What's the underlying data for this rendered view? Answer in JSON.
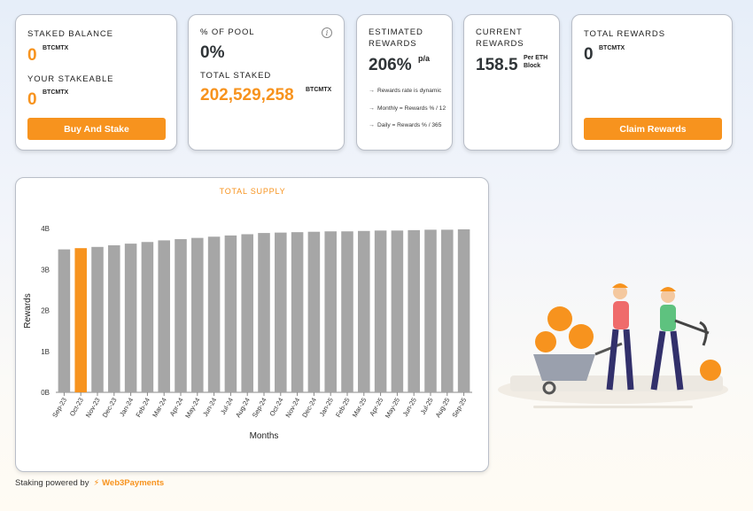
{
  "cards": {
    "staked_balance": {
      "label": "STAKED BALANCE",
      "value": "0",
      "unit": "BTCMTX",
      "stakeable_label": "YOUR STAKEABLE",
      "stakeable_value": "0",
      "stakeable_unit": "BTCMTX",
      "button": "Buy And Stake"
    },
    "pool": {
      "label": "% OF POOL",
      "value": "0%",
      "info_icon": "info-icon",
      "total_label": "TOTAL STAKED",
      "total_value": "202,529,258",
      "total_unit": "BTCMTX"
    },
    "estimated": {
      "label_line1": "ESTIMATED",
      "label_line2": "REWARDS",
      "value": "206%",
      "unit": "p/a",
      "notes": [
        "Rewards rate is dynamic",
        "Monthly = Rewards % / 12",
        "Daily = Rewards % / 365"
      ]
    },
    "current": {
      "label_line1": "CURRENT",
      "label_line2": "REWARDS",
      "value": "158.5",
      "unit_line1": "Per ETH",
      "unit_line2": "Block"
    },
    "total_rewards": {
      "label": "TOTAL REWARDS",
      "value": "0",
      "unit": "BTCMTX",
      "button": "Claim Rewards"
    }
  },
  "footer": {
    "text": "Staking powered by",
    "brand": "Web3Payments"
  },
  "colors": {
    "accent": "#f7931e",
    "bar": "#a6a6a6",
    "highlight": "#f7931e"
  },
  "chart_data": {
    "type": "bar",
    "title": "TOTAL SUPPLY",
    "xlabel": "Months",
    "ylabel": "Rewards",
    "ylim": [
      0,
      4
    ],
    "y_unit": "B",
    "yticks": [
      "0B",
      "1B",
      "2B",
      "3B",
      "4B"
    ],
    "categories": [
      "Sep-23",
      "Oct-23",
      "Nov-23",
      "Dec-23",
      "Jan-24",
      "Feb-24",
      "Mar-24",
      "Apr-24",
      "May-24",
      "Jun-24",
      "Jul-24",
      "Aug-24",
      "Sep-24",
      "Oct-24",
      "Nov-24",
      "Dec-24",
      "Jan-25",
      "Feb-25",
      "Mar-25",
      "Apr-25",
      "May-25",
      "Jun-25",
      "Jul-25",
      "Aug-25",
      "Sep-25"
    ],
    "values": [
      3.49,
      3.52,
      3.55,
      3.59,
      3.63,
      3.67,
      3.71,
      3.74,
      3.77,
      3.8,
      3.83,
      3.86,
      3.89,
      3.9,
      3.91,
      3.92,
      3.93,
      3.93,
      3.94,
      3.95,
      3.95,
      3.96,
      3.97,
      3.97,
      3.98
    ],
    "highlight_index": 1,
    "grid": false,
    "legend": "none"
  }
}
